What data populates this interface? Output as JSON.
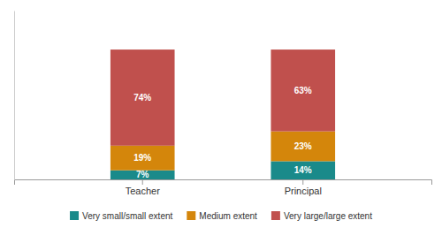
{
  "chart_data": {
    "type": "bar",
    "stacked": true,
    "categories": [
      "Teacher",
      "Principal"
    ],
    "series": [
      {
        "name": "Very small/small extent",
        "color": "#1a8a8a",
        "values": [
          7,
          14
        ],
        "value_labels": [
          "7%",
          "14%"
        ]
      },
      {
        "name": "Medium extent",
        "color": "#d4860b",
        "values": [
          19,
          23
        ],
        "value_labels": [
          "19%",
          "23%"
        ]
      },
      {
        "name": "Very large/large extent",
        "color": "#c0504d",
        "values": [
          74,
          63
        ],
        "value_labels": [
          "74%",
          "63%"
        ]
      }
    ],
    "ylim": [
      0,
      130
    ],
    "data_labels": true,
    "tick_labels": "x",
    "grid": false,
    "legend": "bottom"
  }
}
